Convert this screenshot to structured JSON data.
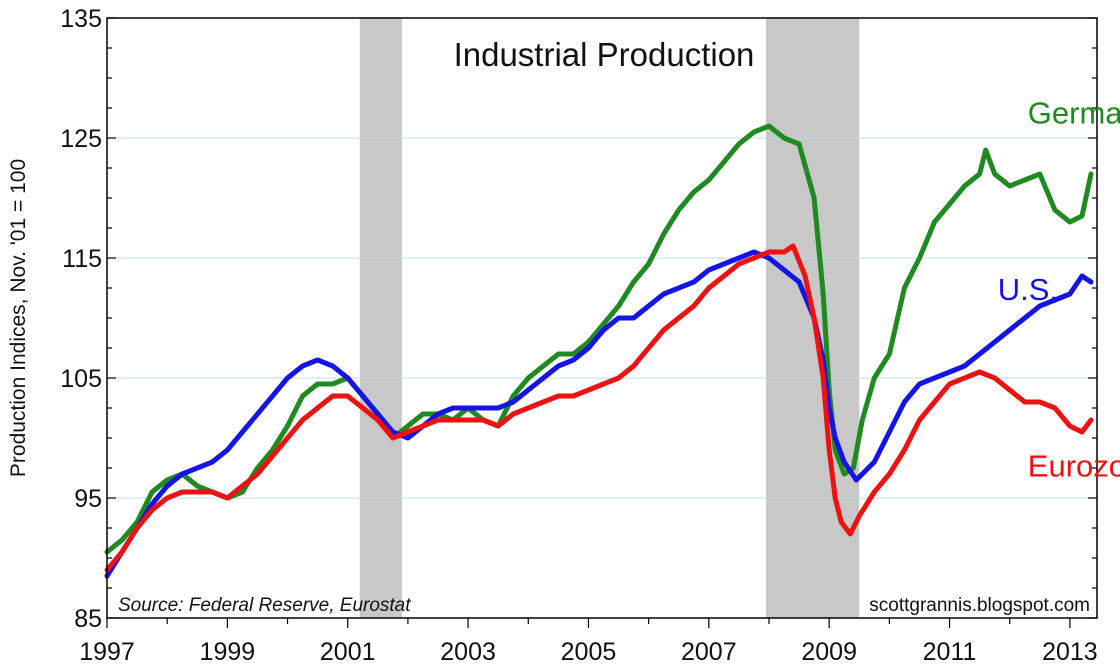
{
  "chart_data": {
    "type": "line",
    "title": "Industrial Production",
    "ylabel": "Production Indices, Nov. '01 = 100",
    "source": "Source: Federal Reserve, Eurostat",
    "credit": "scottgrannis.blogspot.com",
    "xlim": [
      1997,
      2013.45
    ],
    "ylim": [
      85,
      135
    ],
    "x_ticks": [
      1997,
      1999,
      2001,
      2003,
      2005,
      2007,
      2009,
      2011,
      2013
    ],
    "x_tick_labels": [
      "1997",
      "1999",
      "2001",
      "2003",
      "2005",
      "2007",
      "2009",
      "2011",
      "2013"
    ],
    "y_ticks": [
      85,
      95,
      105,
      115,
      125,
      135
    ],
    "y_tick_labels": [
      "85",
      "95",
      "105",
      "115",
      "125",
      "135"
    ],
    "grid": true,
    "recessions": [
      [
        2001.2,
        2001.9
      ],
      [
        2007.95,
        2009.5
      ]
    ],
    "recession_color": "#c8c8c8",
    "series": [
      {
        "name": "Germany",
        "color": "#1f8a1f",
        "label_pos": [
          2012.3,
          126.2
        ],
        "x": [
          1997.0,
          1997.25,
          1997.5,
          1997.75,
          1998.0,
          1998.25,
          1998.5,
          1998.75,
          1999.0,
          1999.25,
          1999.5,
          1999.75,
          2000.0,
          2000.25,
          2000.5,
          2000.75,
          2001.0,
          2001.25,
          2001.5,
          2001.75,
          2002.0,
          2002.25,
          2002.5,
          2002.75,
          2003.0,
          2003.25,
          2003.5,
          2003.75,
          2004.0,
          2004.25,
          2004.5,
          2004.75,
          2005.0,
          2005.25,
          2005.5,
          2005.75,
          2006.0,
          2006.25,
          2006.5,
          2006.75,
          2007.0,
          2007.25,
          2007.5,
          2007.75,
          2008.0,
          2008.25,
          2008.5,
          2008.75,
          2008.9,
          2009.0,
          2009.1,
          2009.25,
          2009.4,
          2009.55,
          2009.75,
          2010.0,
          2010.25,
          2010.5,
          2010.75,
          2011.0,
          2011.25,
          2011.5,
          2011.6,
          2011.75,
          2012.0,
          2012.25,
          2012.5,
          2012.75,
          2013.0,
          2013.2,
          2013.35
        ],
        "values": [
          90.5,
          91.5,
          93.0,
          95.5,
          96.5,
          97.0,
          96.0,
          95.5,
          95.0,
          95.5,
          97.5,
          99.0,
          101.0,
          103.5,
          104.5,
          104.5,
          105.0,
          103.5,
          102.0,
          100.0,
          101.0,
          102.0,
          102.0,
          101.5,
          102.5,
          101.5,
          101.0,
          103.5,
          105.0,
          106.0,
          107.0,
          107.0,
          108.0,
          109.5,
          111.0,
          113.0,
          114.5,
          117.0,
          119.0,
          120.5,
          121.5,
          123.0,
          124.5,
          125.5,
          126.0,
          125.0,
          124.5,
          120.0,
          112.0,
          104.0,
          99.0,
          97.0,
          97.5,
          101.5,
          105.0,
          107.0,
          112.5,
          115.0,
          118.0,
          119.5,
          121.0,
          122.0,
          124.0,
          122.0,
          121.0,
          121.5,
          122.0,
          119.0,
          118.0,
          118.5,
          122.0
        ]
      },
      {
        "name": "U.S.",
        "color": "#1414e6",
        "label_pos": [
          2011.8,
          111.5
        ],
        "x": [
          1997.0,
          1997.25,
          1997.5,
          1997.75,
          1998.0,
          1998.25,
          1998.5,
          1998.75,
          1999.0,
          1999.25,
          1999.5,
          1999.75,
          2000.0,
          2000.25,
          2000.5,
          2000.75,
          2001.0,
          2001.25,
          2001.5,
          2001.75,
          2002.0,
          2002.25,
          2002.5,
          2002.75,
          2003.0,
          2003.25,
          2003.5,
          2003.75,
          2004.0,
          2004.25,
          2004.5,
          2004.75,
          2005.0,
          2005.25,
          2005.5,
          2005.75,
          2006.0,
          2006.25,
          2006.5,
          2006.75,
          2007.0,
          2007.25,
          2007.5,
          2007.75,
          2008.0,
          2008.25,
          2008.5,
          2008.75,
          2008.9,
          2009.0,
          2009.1,
          2009.25,
          2009.45,
          2009.75,
          2010.0,
          2010.25,
          2010.5,
          2010.75,
          2011.0,
          2011.25,
          2011.5,
          2011.75,
          2012.0,
          2012.25,
          2012.5,
          2012.75,
          2013.0,
          2013.2,
          2013.35
        ],
        "values": [
          88.5,
          90.5,
          92.5,
          94.5,
          96.0,
          97.0,
          97.5,
          98.0,
          99.0,
          100.5,
          102.0,
          103.5,
          105.0,
          106.0,
          106.5,
          106.0,
          105.0,
          103.5,
          102.0,
          100.5,
          100.0,
          101.0,
          102.0,
          102.5,
          102.5,
          102.5,
          102.5,
          103.0,
          104.0,
          105.0,
          106.0,
          106.5,
          107.5,
          109.0,
          110.0,
          110.0,
          111.0,
          112.0,
          112.5,
          113.0,
          114.0,
          114.5,
          115.0,
          115.5,
          115.0,
          114.0,
          113.0,
          110.0,
          106.5,
          102.5,
          100.0,
          98.0,
          96.5,
          98.0,
          100.5,
          103.0,
          104.5,
          105.0,
          105.5,
          106.0,
          107.0,
          108.0,
          109.0,
          110.0,
          111.0,
          111.5,
          112.0,
          113.5,
          113.0
        ]
      },
      {
        "name": "Eurozone",
        "color": "#ee1111",
        "label_pos": [
          2012.3,
          96.8
        ],
        "x": [
          1997.0,
          1997.25,
          1997.5,
          1997.75,
          1998.0,
          1998.25,
          1998.5,
          1998.75,
          1999.0,
          1999.25,
          1999.5,
          1999.75,
          2000.0,
          2000.25,
          2000.5,
          2000.75,
          2001.0,
          2001.25,
          2001.5,
          2001.75,
          2002.0,
          2002.25,
          2002.5,
          2002.75,
          2003.0,
          2003.25,
          2003.5,
          2003.75,
          2004.0,
          2004.25,
          2004.5,
          2004.75,
          2005.0,
          2005.25,
          2005.5,
          2005.75,
          2006.0,
          2006.25,
          2006.5,
          2006.75,
          2007.0,
          2007.25,
          2007.5,
          2007.75,
          2008.0,
          2008.25,
          2008.4,
          2008.6,
          2008.75,
          2008.9,
          2009.0,
          2009.1,
          2009.2,
          2009.35,
          2009.5,
          2009.75,
          2010.0,
          2010.25,
          2010.5,
          2010.75,
          2011.0,
          2011.25,
          2011.5,
          2011.75,
          2012.0,
          2012.25,
          2012.5,
          2012.75,
          2013.0,
          2013.2,
          2013.35
        ],
        "values": [
          89.0,
          90.5,
          92.5,
          94.0,
          95.0,
          95.5,
          95.5,
          95.5,
          95.0,
          96.0,
          97.0,
          98.5,
          100.0,
          101.5,
          102.5,
          103.5,
          103.5,
          102.5,
          101.5,
          100.0,
          100.5,
          101.0,
          101.5,
          101.5,
          101.5,
          101.5,
          101.0,
          102.0,
          102.5,
          103.0,
          103.5,
          103.5,
          104.0,
          104.5,
          105.0,
          106.0,
          107.5,
          109.0,
          110.0,
          111.0,
          112.5,
          113.5,
          114.5,
          115.0,
          115.5,
          115.5,
          116.0,
          113.5,
          110.0,
          105.0,
          99.0,
          95.0,
          93.0,
          92.0,
          93.5,
          95.5,
          97.0,
          99.0,
          101.5,
          103.0,
          104.5,
          105.0,
          105.5,
          105.0,
          104.0,
          103.0,
          103.0,
          102.5,
          101.0,
          100.5,
          101.5
        ]
      }
    ]
  }
}
